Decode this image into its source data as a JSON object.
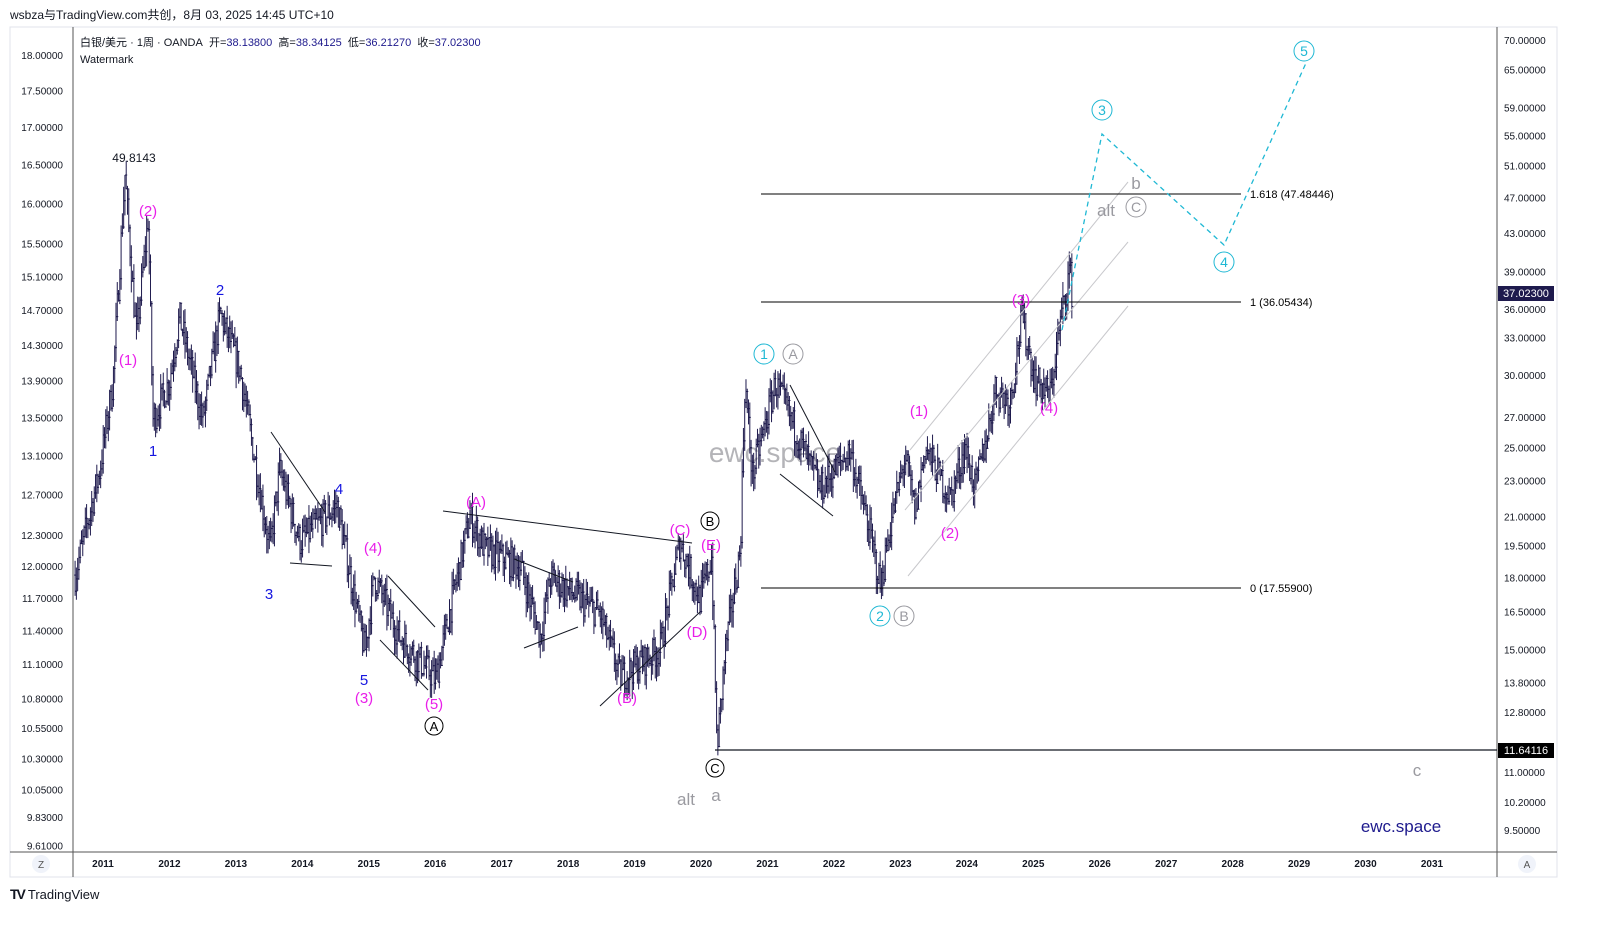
{
  "header": {
    "attribution": "wsbza与TradingView.com共创，8月 03, 2025 14:45 UTC+10"
  },
  "legend": {
    "symbol": "白银/美元 · 1周 · OANDA",
    "open_label": "开=",
    "open": "38.13800",
    "high_label": "高=",
    "high": "38.34125",
    "low_label": "低=",
    "low": "36.21270",
    "close_label": "收=",
    "close": "37.02300",
    "watermark_label": "Watermark"
  },
  "footer": {
    "brand": "TradingView"
  },
  "axis_buttons": {
    "left": "Z",
    "right": "A"
  },
  "chart_data": {
    "type": "candlestick",
    "title": "白银/美元 · 1周 · OANDA",
    "x_ticks": [
      "2011",
      "2012",
      "2013",
      "2014",
      "2015",
      "2016",
      "2017",
      "2018",
      "2019",
      "2020",
      "2021",
      "2022",
      "2023",
      "2024",
      "2025",
      "2026",
      "2027",
      "2028",
      "2029",
      "2030",
      "2031"
    ],
    "right_axis": {
      "scale": "log",
      "ylim": [
        9.5,
        70
      ],
      "ticks": [
        "70.00000",
        "65.00000",
        "59.00000",
        "55.00000",
        "51.00000",
        "47.00000",
        "43.00000",
        "39.00000",
        "36.00000",
        "33.00000",
        "30.00000",
        "27.00000",
        "25.00000",
        "23.00000",
        "21.00000",
        "19.50000",
        "18.00000",
        "16.50000",
        "15.00000",
        "13.80000",
        "12.80000",
        "11.00000",
        "10.20000",
        "9.50000"
      ]
    },
    "left_axis": {
      "scale": "log",
      "ylim": [
        9.61,
        18
      ],
      "ticks": [
        "18.00000",
        "17.50000",
        "17.00000",
        "16.50000",
        "16.00000",
        "15.50000",
        "15.10000",
        "14.70000",
        "14.30000",
        "13.90000",
        "13.50000",
        "13.10000",
        "12.70000",
        "12.30000",
        "12.00000",
        "11.70000",
        "11.40000",
        "11.10000",
        "10.80000",
        "10.55000",
        "10.30000",
        "10.05000",
        "9.83000",
        "9.61000"
      ]
    },
    "last_price": "37.02300",
    "last_price_color": "#1e1a4d",
    "support_level": "11.64116",
    "price_path": [
      [
        2010.58,
        18.1
      ],
      [
        2010.95,
        23.6
      ],
      [
        2011.15,
        29.6
      ],
      [
        2011.33,
        49.8
      ],
      [
        2011.5,
        33
      ],
      [
        2011.68,
        44.7
      ],
      [
        2011.75,
        26.8
      ],
      [
        2012.0,
        29.6
      ],
      [
        2012.15,
        34.8
      ],
      [
        2012.5,
        26.8
      ],
      [
        2012.76,
        35
      ],
      [
        2013.06,
        30.4
      ],
      [
        2013.51,
        19.3
      ],
      [
        2013.66,
        23.6
      ],
      [
        2013.96,
        19.7
      ],
      [
        2014.52,
        21.6
      ],
      [
        2014.94,
        14.9
      ],
      [
        2015.08,
        18
      ],
      [
        2015.46,
        15.5
      ],
      [
        2016.0,
        13.9
      ],
      [
        2016.52,
        21.0
      ],
      [
        2016.75,
        19.3
      ],
      [
        2017.28,
        18.5
      ],
      [
        2017.58,
        15.5
      ],
      [
        2017.73,
        18
      ],
      [
        2018.48,
        16.4
      ],
      [
        2018.78,
        14.0
      ],
      [
        2019.38,
        15
      ],
      [
        2019.68,
        19.7
      ],
      [
        2019.98,
        17
      ],
      [
        2020.16,
        19
      ],
      [
        2020.24,
        11.64
      ],
      [
        2020.36,
        14.9
      ],
      [
        2020.59,
        19.3
      ],
      [
        2020.66,
        29.5
      ],
      [
        2020.77,
        23.3
      ],
      [
        2021.12,
        29.4
      ],
      [
        2021.49,
        25.4
      ],
      [
        2021.79,
        22.5
      ],
      [
        2022.24,
        24.8
      ],
      [
        2022.54,
        20.1
      ],
      [
        2022.7,
        17.6
      ],
      [
        2022.85,
        20.6
      ],
      [
        2023.07,
        24.4
      ],
      [
        2023.22,
        21.2
      ],
      [
        2023.37,
        25
      ],
      [
        2023.75,
        22
      ],
      [
        2023.97,
        25
      ],
      [
        2024.12,
        22.5
      ],
      [
        2024.35,
        26.8
      ],
      [
        2024.42,
        29
      ],
      [
        2024.65,
        28.1
      ],
      [
        2024.83,
        34.8
      ],
      [
        2025.02,
        29.7
      ],
      [
        2025.25,
        28.5
      ],
      [
        2025.4,
        34.1
      ],
      [
        2025.55,
        39.4
      ],
      [
        2025.58,
        37.02
      ]
    ],
    "peak_label": "49.8143",
    "fib_levels": [
      {
        "label": "1.618 (47.48446)",
        "value": 47.48446
      },
      {
        "label": "1 (36.05434)",
        "value": 36.05434
      },
      {
        "label": "0 (17.55900)",
        "value": 17.559
      }
    ],
    "wave_labels": {
      "magenta": [
        "(1)",
        "(2)",
        "(3)",
        "(4)",
        "(5)",
        "(A)",
        "(B)",
        "(C)",
        "(E)",
        "(D)",
        "(1)",
        "(2)",
        "(3)",
        "(4)"
      ],
      "blue": [
        "1",
        "2",
        "3",
        "4",
        "5"
      ],
      "black_circled": [
        "A",
        "B",
        "C"
      ],
      "cyan_circled": [
        "1",
        "2",
        "3",
        "4",
        "5"
      ],
      "grey_circled": [
        "A",
        "B",
        "C"
      ],
      "grey_text": [
        "alt",
        "a",
        "b",
        "alt",
        "c"
      ]
    },
    "watermark_center": "ewc.space",
    "watermark_corner": "ewc.space",
    "colors": {
      "candles": "#1e1a4d",
      "magenta": "#e91ee9",
      "blue": "#1515e0",
      "cyan": "#1fb8d4",
      "grey": "#9a9aa0"
    }
  }
}
